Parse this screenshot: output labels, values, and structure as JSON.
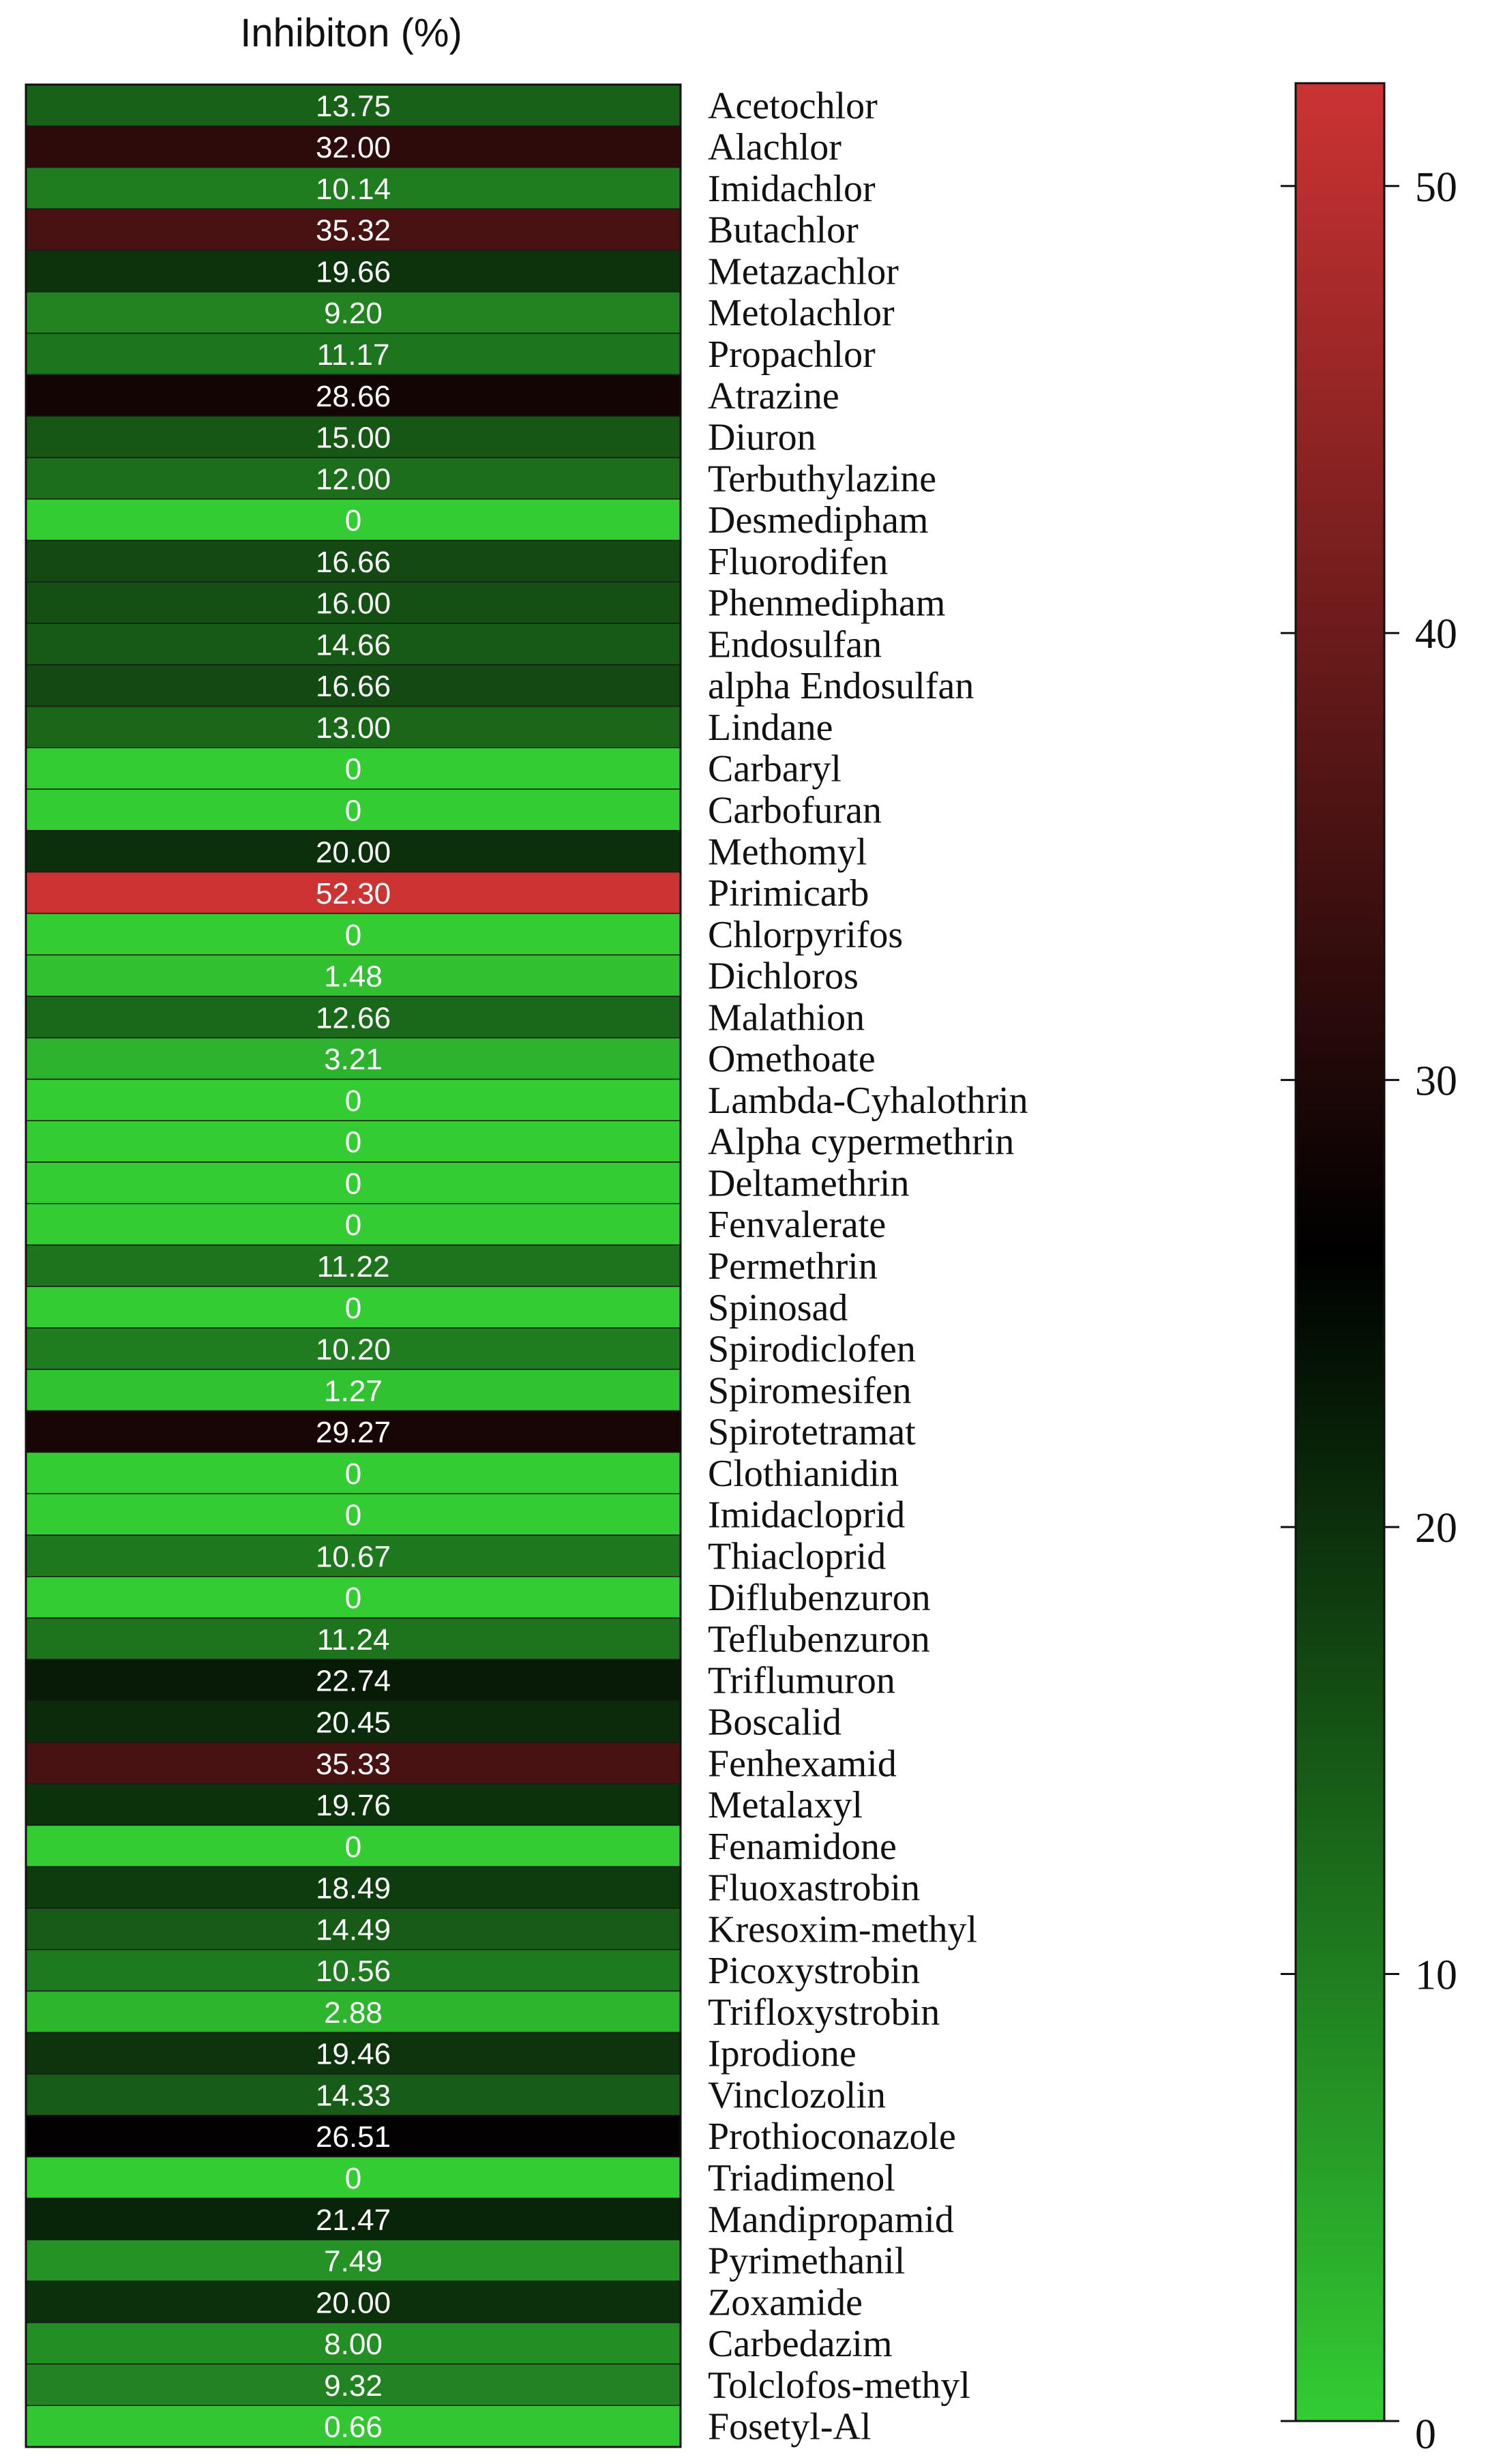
{
  "chart_data": {
    "type": "heatmap",
    "title": "Inhibiton (%)",
    "rows": [
      {
        "name": "Acetochlor",
        "label": "13.75",
        "value": 13.75
      },
      {
        "name": "Alachlor",
        "label": "32.00",
        "value": 32.0
      },
      {
        "name": "Imidachlor",
        "label": "10.14",
        "value": 10.14
      },
      {
        "name": "Butachlor",
        "label": "35.32",
        "value": 35.32
      },
      {
        "name": "Metazachlor",
        "label": "19.66",
        "value": 19.66
      },
      {
        "name": "Metolachlor",
        "label": "9.20",
        "value": 9.2
      },
      {
        "name": "Propachlor",
        "label": "11.17",
        "value": 11.17
      },
      {
        "name": "Atrazine",
        "label": "28.66",
        "value": 28.66
      },
      {
        "name": "Diuron",
        "label": "15.00",
        "value": 15.0
      },
      {
        "name": "Terbuthylazine",
        "label": "12.00",
        "value": 12.0
      },
      {
        "name": "Desmedipham",
        "label": "0",
        "value": 0
      },
      {
        "name": "Fluorodifen",
        "label": "16.66",
        "value": 16.66
      },
      {
        "name": "Phenmedipham",
        "label": "16.00",
        "value": 16.0
      },
      {
        "name": "Endosulfan",
        "label": "14.66",
        "value": 14.66
      },
      {
        "name": "alpha Endosulfan",
        "label": "16.66",
        "value": 16.66
      },
      {
        "name": "Lindane",
        "label": "13.00",
        "value": 13.0
      },
      {
        "name": "Carbaryl",
        "label": "0",
        "value": 0
      },
      {
        "name": "Carbofuran",
        "label": "0",
        "value": 0
      },
      {
        "name": "Methomyl",
        "label": "20.00",
        "value": 20.0
      },
      {
        "name": "Pirimicarb",
        "label": "52.30",
        "value": 52.3
      },
      {
        "name": "Chlorpyrifos",
        "label": "0",
        "value": 0
      },
      {
        "name": "Dichloros",
        "label": "1.48",
        "value": 1.48
      },
      {
        "name": "Malathion",
        "label": "12.66",
        "value": 12.66
      },
      {
        "name": "Omethoate",
        "label": "3.21",
        "value": 3.21
      },
      {
        "name": "Lambda-Cyhalothrin",
        "label": "0",
        "value": 0
      },
      {
        "name": "Alpha cypermethrin",
        "label": "0",
        "value": 0
      },
      {
        "name": "Deltamethrin",
        "label": "0",
        "value": 0
      },
      {
        "name": "Fenvalerate",
        "label": "0",
        "value": 0
      },
      {
        "name": "Permethrin",
        "label": "11.22",
        "value": 11.22
      },
      {
        "name": "Spinosad",
        "label": "0",
        "value": 0
      },
      {
        "name": "Spirodiclofen",
        "label": "10.20",
        "value": 10.2
      },
      {
        "name": "Spiromesifen",
        "label": "1.27",
        "value": 1.27
      },
      {
        "name": "Spirotetramat",
        "label": "29.27",
        "value": 29.27
      },
      {
        "name": "Clothianidin",
        "label": "0",
        "value": 0
      },
      {
        "name": "Imidacloprid",
        "label": "0",
        "value": 0
      },
      {
        "name": "Thiacloprid",
        "label": "10.67",
        "value": 10.67
      },
      {
        "name": "Diflubenzuron",
        "label": "0",
        "value": 0
      },
      {
        "name": "Teflubenzuron",
        "label": "11.24",
        "value": 11.24
      },
      {
        "name": "Triflumuron",
        "label": "22.74",
        "value": 22.74
      },
      {
        "name": "Boscalid",
        "label": "20.45",
        "value": 20.45
      },
      {
        "name": "Fenhexamid",
        "label": "35.33",
        "value": 35.33
      },
      {
        "name": "Metalaxyl",
        "label": "19.76",
        "value": 19.76
      },
      {
        "name": "Fenamidone",
        "label": "0",
        "value": 0
      },
      {
        "name": "Fluoxastrobin",
        "label": "18.49",
        "value": 18.49
      },
      {
        "name": "Kresoxim-methyl",
        "label": "14.49",
        "value": 14.49
      },
      {
        "name": "Picoxystrobin",
        "label": "10.56",
        "value": 10.56
      },
      {
        "name": "Trifloxystrobin",
        "label": "2.88",
        "value": 2.88
      },
      {
        "name": "Iprodione",
        "label": "19.46",
        "value": 19.46
      },
      {
        "name": "Vinclozolin",
        "label": "14.33",
        "value": 14.33
      },
      {
        "name": "Prothioconazole",
        "label": "26.51",
        "value": 26.51
      },
      {
        "name": "Triadimenol",
        "label": "0",
        "value": 0
      },
      {
        "name": "Mandipropamid",
        "label": "21.47",
        "value": 21.47
      },
      {
        "name": "Pyrimethanil",
        "label": "7.49",
        "value": 7.49
      },
      {
        "name": "Zoxamide",
        "label": "20.00",
        "value": 20.0
      },
      {
        "name": "Carbedazim",
        "label": "8.00",
        "value": 8.0
      },
      {
        "name": "Tolclofos-methyl",
        "label": "9.32",
        "value": 9.32
      },
      {
        "name": "Fosetyl-Al",
        "label": "0.66",
        "value": 0.66
      }
    ],
    "colorbar": {
      "range": [
        0,
        52.3
      ],
      "ticks": [
        0,
        10,
        20,
        30,
        40,
        50
      ],
      "colors": {
        "low": "#33cc33",
        "mid": "#000000",
        "high": "#cc3333"
      },
      "mid_value": 26.15
    },
    "grid": false,
    "legend": "right"
  }
}
